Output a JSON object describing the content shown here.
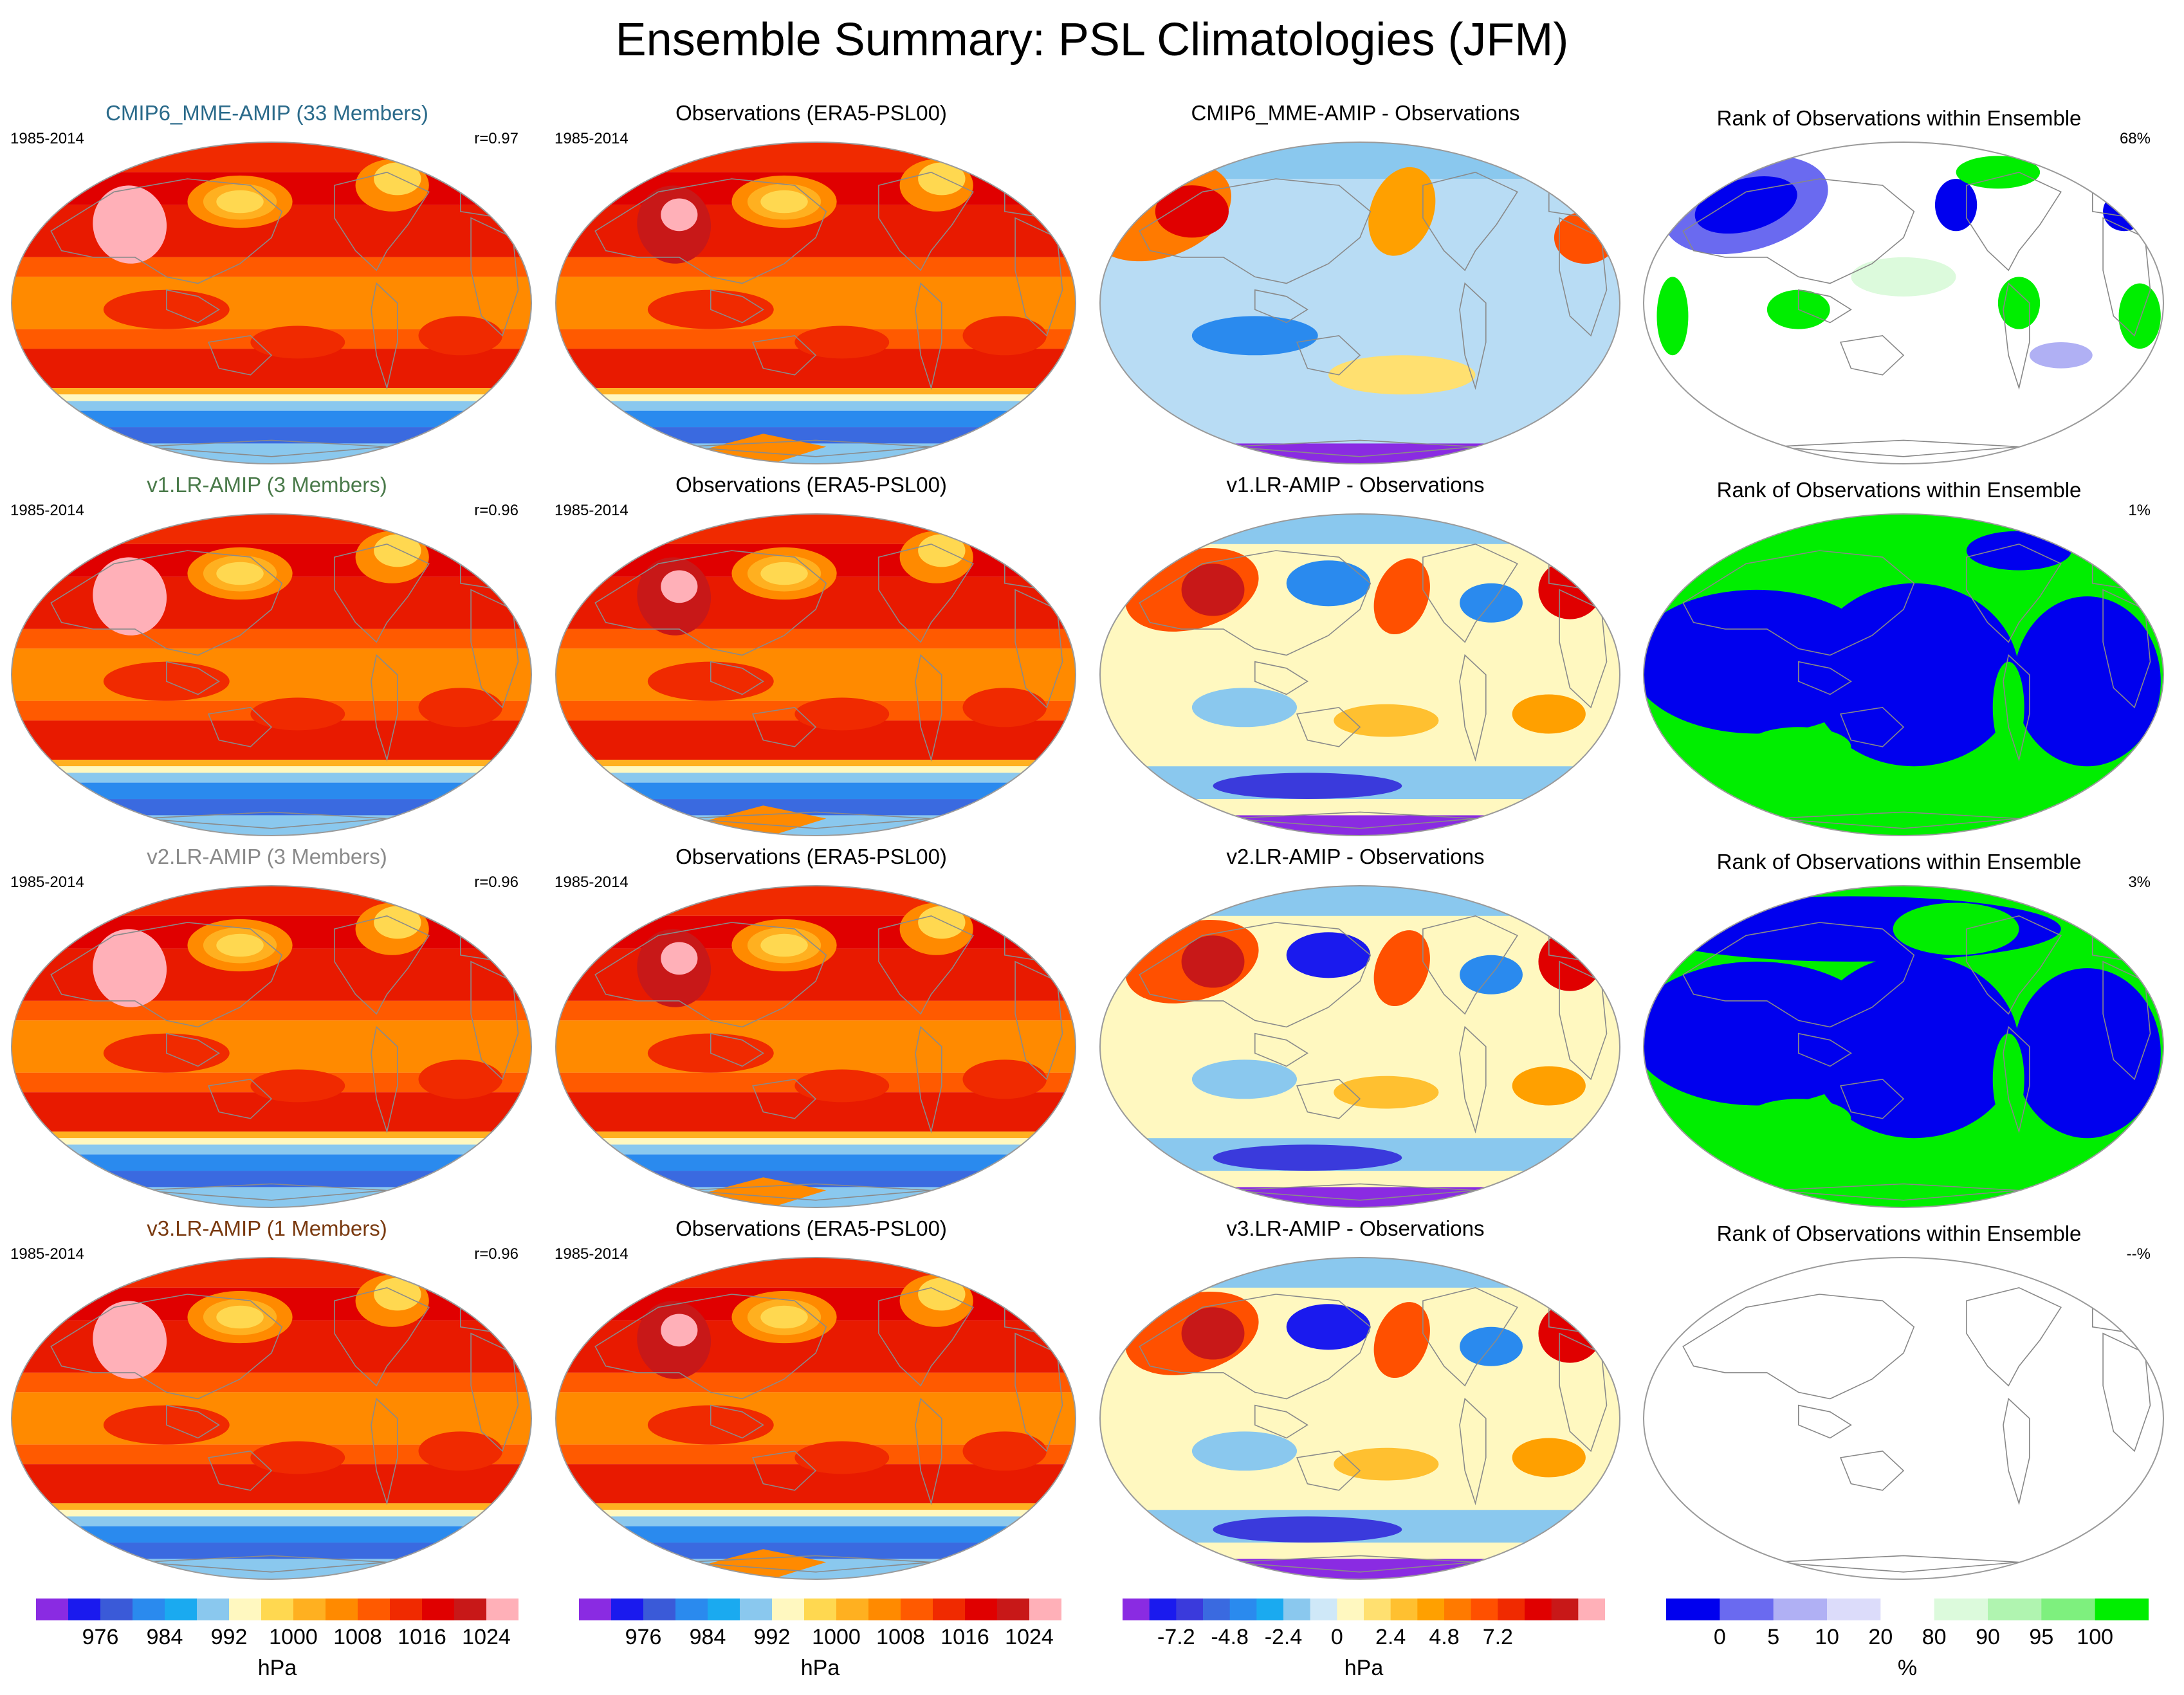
{
  "title": "Ensemble Summary: PSL Climatologies (JFM)",
  "colors": {
    "land_outline": "#8a8a8a",
    "map_edge": "#9a9a9a",
    "title_cmip6": "#2a6a8a",
    "title_v1": "#4a7a4a",
    "title_v2": "#8a8a8a",
    "title_v3": "#7a3a10"
  },
  "rows": [
    {
      "model_label": "CMIP6_MME-AMIP (33 Members)",
      "model_color": "#2a6a8a",
      "period": "1985-2014",
      "correlation": "r=0.97",
      "obs_label": "Observations (ERA5-PSL00)",
      "obs_period": "1985-2014",
      "diff_label": "CMIP6_MME-AMIP - Observations",
      "rank_label": "Rank of Observations within Ensemble",
      "rank_pct": "68%",
      "rank_mode": "mixed"
    },
    {
      "model_label": "v1.LR-AMIP (3 Members)",
      "model_color": "#4a7a4a",
      "period": "1985-2014",
      "correlation": "r=0.96",
      "obs_label": "Observations (ERA5-PSL00)",
      "obs_period": "1985-2014",
      "diff_label": "v1.LR-AMIP - Observations",
      "rank_label": "Rank of Observations within Ensemble",
      "rank_pct": "1%",
      "rank_mode": "extreme"
    },
    {
      "model_label": "v2.LR-AMIP (3 Members)",
      "model_color": "#8a8a8a",
      "period": "1985-2014",
      "correlation": "r=0.96",
      "obs_label": "Observations (ERA5-PSL00)",
      "obs_period": "1985-2014",
      "diff_label": "v2.LR-AMIP - Observations",
      "rank_label": "Rank of Observations within Ensemble",
      "rank_pct": "3%",
      "rank_mode": "extreme"
    },
    {
      "model_label": "v3.LR-AMIP (1 Members)",
      "model_color": "#7a3a10",
      "period": "1985-2014",
      "correlation": "r=0.96",
      "obs_label": "Observations (ERA5-PSL00)",
      "obs_period": "1985-2014",
      "diff_label": "v3.LR-AMIP - Observations",
      "rank_label": "Rank of Observations within Ensemble",
      "rank_pct": "--%",
      "rank_mode": "none"
    }
  ],
  "colorbars": [
    {
      "unit": "hPa",
      "colors": [
        "#8a2be2",
        "#1a1aee",
        "#3a5ad8",
        "#2a8aee",
        "#1aaaf0",
        "#8ac8ee",
        "#fff8c0",
        "#ffd850",
        "#ffb020",
        "#ff8a00",
        "#ff5a00",
        "#f02a00",
        "#e00000",
        "#c81818",
        "#ffb0b8"
      ],
      "ticks": [
        "976",
        "984",
        "992",
        "1000",
        "1008",
        "1016",
        "1024"
      ],
      "tick_index": [
        2,
        4,
        6,
        8,
        10,
        12,
        14
      ]
    },
    {
      "unit": "hPa",
      "colors": [
        "#8a2be2",
        "#1a1aee",
        "#3a5ad8",
        "#2a8aee",
        "#1aaaf0",
        "#8ac8ee",
        "#fff8c0",
        "#ffd850",
        "#ffb020",
        "#ff8a00",
        "#ff5a00",
        "#f02a00",
        "#e00000",
        "#c81818",
        "#ffb0b8"
      ],
      "ticks": [
        "976",
        "984",
        "992",
        "1000",
        "1008",
        "1016",
        "1024"
      ],
      "tick_index": [
        2,
        4,
        6,
        8,
        10,
        12,
        14
      ]
    },
    {
      "unit": "hPa",
      "colors": [
        "#8a2be2",
        "#1a1aee",
        "#3a3adc",
        "#3a6ae0",
        "#2a8aee",
        "#1aaaf0",
        "#8ac8ee",
        "#cfe8f8",
        "#fff8c0",
        "#ffe070",
        "#ffc030",
        "#ffa000",
        "#ff7a00",
        "#ff5000",
        "#f02a00",
        "#e00000",
        "#c81818",
        "#ffb0b8"
      ],
      "ticks": [
        "-7.2",
        "-4.8",
        "-2.4",
        "0",
        "2.4",
        "4.8",
        "7.2"
      ],
      "tick_index": [
        2,
        4,
        6,
        8,
        10,
        12,
        14
      ]
    },
    {
      "unit": "%",
      "colors": [
        "#0000ee",
        "#6a6af0",
        "#b0b0f4",
        "#dcdcfa",
        "#ffffff",
        "#dcfadc",
        "#b0f4b0",
        "#7ef07e",
        "#00ee00"
      ],
      "ticks": [
        "0",
        "5",
        "10",
        "20",
        "80",
        "90",
        "95",
        "100"
      ],
      "tick_index": [
        1,
        2,
        3,
        4,
        5,
        6,
        7,
        8
      ]
    }
  ],
  "chart_data": [
    {
      "type": "heatmap",
      "title": "Ensemble Summary: PSL Climatologies (JFM)",
      "panels": [
        {
          "row": 1,
          "col": 1,
          "title": "CMIP6_MME-AMIP (33 Members)",
          "period": "1985-2014",
          "r": 0.97,
          "field": "PSL climatology",
          "unit": "hPa"
        },
        {
          "row": 1,
          "col": 2,
          "title": "Observations (ERA5-PSL00)",
          "period": "1985-2014",
          "field": "PSL climatology",
          "unit": "hPa"
        },
        {
          "row": 1,
          "col": 3,
          "title": "CMIP6_MME-AMIP - Observations",
          "field": "PSL difference",
          "unit": "hPa"
        },
        {
          "row": 1,
          "col": 4,
          "title": "Rank of Observations within Ensemble",
          "rank_summary": "68%",
          "unit": "%"
        },
        {
          "row": 2,
          "col": 1,
          "title": "v1.LR-AMIP (3 Members)",
          "period": "1985-2014",
          "r": 0.96,
          "unit": "hPa"
        },
        {
          "row": 2,
          "col": 2,
          "title": "Observations (ERA5-PSL00)",
          "period": "1985-2014",
          "unit": "hPa"
        },
        {
          "row": 2,
          "col": 3,
          "title": "v1.LR-AMIP - Observations",
          "unit": "hPa"
        },
        {
          "row": 2,
          "col": 4,
          "title": "Rank of Observations within Ensemble",
          "rank_summary": "1%",
          "unit": "%"
        },
        {
          "row": 3,
          "col": 1,
          "title": "v2.LR-AMIP (3 Members)",
          "period": "1985-2014",
          "r": 0.96,
          "unit": "hPa"
        },
        {
          "row": 3,
          "col": 2,
          "title": "Observations (ERA5-PSL00)",
          "period": "1985-2014",
          "unit": "hPa"
        },
        {
          "row": 3,
          "col": 3,
          "title": "v2.LR-AMIP - Observations",
          "unit": "hPa"
        },
        {
          "row": 3,
          "col": 4,
          "title": "Rank of Observations within Ensemble",
          "rank_summary": "3%",
          "unit": "%"
        },
        {
          "row": 4,
          "col": 1,
          "title": "v3.LR-AMIP (1 Members)",
          "period": "1985-2014",
          "r": 0.96,
          "unit": "hPa"
        },
        {
          "row": 4,
          "col": 2,
          "title": "Observations (ERA5-PSL00)",
          "period": "1985-2014",
          "unit": "hPa"
        },
        {
          "row": 4,
          "col": 3,
          "title": "v3.LR-AMIP - Observations",
          "unit": "hPa"
        },
        {
          "row": 4,
          "col": 4,
          "title": "Rank of Observations within Ensemble",
          "rank_summary": "--%",
          "unit": "%"
        }
      ],
      "colorbars": [
        {
          "unit": "hPa",
          "ticks": [
            976,
            984,
            992,
            1000,
            1008,
            1016,
            1024
          ]
        },
        {
          "unit": "hPa",
          "ticks": [
            976,
            984,
            992,
            1000,
            1008,
            1016,
            1024
          ]
        },
        {
          "unit": "hPa",
          "ticks": [
            -7.2,
            -4.8,
            -2.4,
            0,
            2.4,
            4.8,
            7.2
          ]
        },
        {
          "unit": "%",
          "ticks": [
            0,
            5,
            10,
            20,
            80,
            90,
            95,
            100
          ]
        }
      ]
    }
  ]
}
